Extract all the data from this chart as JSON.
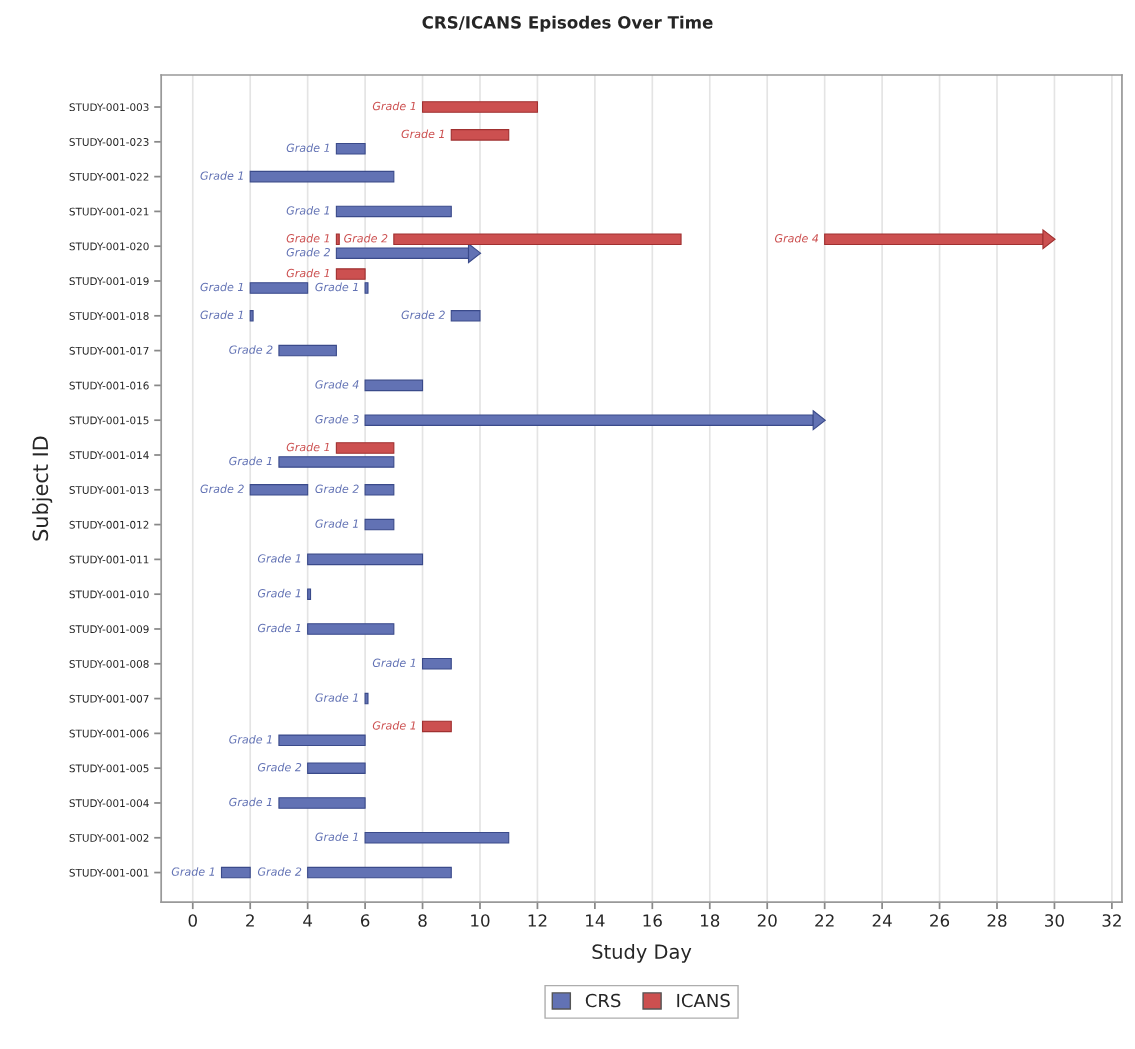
{
  "chart_data": {
    "type": "bar",
    "orientation": "horizontal",
    "title": "CRS/ICANS Episodes Over Time",
    "xlabel": "Study Day",
    "ylabel": "Subject ID",
    "categories": [
      "STUDY-001-003",
      "STUDY-001-023",
      "STUDY-001-022",
      "STUDY-001-021",
      "STUDY-001-020",
      "STUDY-001-019",
      "STUDY-001-018",
      "STUDY-001-017",
      "STUDY-001-016",
      "STUDY-001-015",
      "STUDY-001-014",
      "STUDY-001-013",
      "STUDY-001-012",
      "STUDY-001-011",
      "STUDY-001-010",
      "STUDY-001-009",
      "STUDY-001-008",
      "STUDY-001-007",
      "STUDY-001-006",
      "STUDY-001-005",
      "STUDY-001-004",
      "STUDY-001-002",
      "STUDY-001-001"
    ],
    "xlim": [
      -1.1,
      32.35
    ],
    "xticks": [
      0,
      2,
      4,
      6,
      8,
      10,
      12,
      14,
      16,
      18,
      20,
      22,
      24,
      26,
      28,
      30,
      32
    ],
    "grid": "x",
    "legend": "bottom",
    "series": [
      {
        "name": "CRS",
        "color": "#6272b4",
        "base": [
          null,
          5,
          2,
          5,
          null,
          2,
          2,
          3,
          6,
          null,
          3,
          2,
          6,
          4,
          4,
          4,
          8,
          6,
          3,
          4,
          3,
          6,
          1
        ],
        "values": [
          null,
          1,
          5,
          4,
          null,
          2,
          0.1,
          2,
          2,
          null,
          4,
          2,
          1,
          4,
          0.1,
          3,
          1,
          0.1,
          3,
          2,
          3,
          5,
          1
        ],
        "value_labels": [
          null,
          "Grade 1",
          "Grade 1",
          "Grade 1",
          null,
          "Grade 1",
          "Grade 1",
          "Grade 2",
          "Grade 4",
          null,
          "Grade 1",
          "Grade 2",
          "Grade 1",
          "Grade 1",
          "Grade 1",
          "Grade 1",
          "Grade 1",
          "Grade 1",
          "Grade 1",
          "Grade 2",
          "Grade 1",
          "Grade 1",
          "Grade 1"
        ]
      },
      {
        "color": "#6272b4",
        "base": [
          null,
          null,
          null,
          null,
          null,
          6,
          9,
          null,
          null,
          null,
          null,
          6,
          null,
          null,
          null,
          null,
          null,
          null,
          null,
          null,
          null,
          null,
          4
        ],
        "values": [
          null,
          null,
          null,
          null,
          null,
          0.1,
          1,
          null,
          null,
          null,
          null,
          1,
          null,
          null,
          null,
          null,
          null,
          null,
          null,
          null,
          null,
          null,
          5
        ],
        "value_labels": [
          null,
          null,
          null,
          null,
          null,
          "Grade 1",
          "Grade 2",
          null,
          null,
          null,
          null,
          "Grade 2",
          null,
          null,
          null,
          null,
          null,
          null,
          null,
          null,
          null,
          null,
          "Grade 2"
        ]
      },
      {
        "color": "#6272b4",
        "marker": "triangle",
        "base": [
          null,
          null,
          null,
          null,
          5,
          null,
          null,
          null,
          null,
          6,
          null,
          null,
          null,
          null,
          null,
          null,
          null,
          null,
          null,
          null,
          null,
          null,
          null
        ],
        "values": [
          null,
          null,
          null,
          null,
          4.6,
          null,
          null,
          null,
          null,
          15.6,
          null,
          null,
          null,
          null,
          null,
          null,
          null,
          null,
          null,
          null,
          null,
          null,
          null
        ],
        "value_labels": [
          null,
          null,
          null,
          null,
          "Grade 2",
          null,
          null,
          null,
          null,
          "Grade 3",
          null,
          null,
          null,
          null,
          null,
          null,
          null,
          null,
          null,
          null,
          null,
          null,
          null
        ]
      },
      {
        "name": "ICANS",
        "color": "#cc5050",
        "base": [
          8,
          9,
          null,
          null,
          5,
          5,
          null,
          null,
          null,
          null,
          5,
          null,
          null,
          null,
          null,
          null,
          null,
          null,
          8,
          null,
          null,
          null,
          null
        ],
        "values": [
          4,
          2,
          null,
          null,
          0.1,
          1,
          null,
          null,
          null,
          null,
          2,
          null,
          null,
          null,
          null,
          null,
          null,
          null,
          1,
          null,
          null,
          null,
          null
        ],
        "value_labels": [
          "Grade 1",
          "Grade 1",
          null,
          null,
          "Grade 1",
          "Grade 1",
          null,
          null,
          null,
          null,
          "Grade 1",
          null,
          null,
          null,
          null,
          null,
          null,
          null,
          "Grade 1",
          null,
          null,
          null,
          null
        ]
      },
      {
        "color": "#cc5050",
        "base": [
          null,
          null,
          null,
          null,
          7,
          null,
          null,
          null,
          null,
          null,
          null,
          null,
          null,
          null,
          null,
          null,
          null,
          null,
          null,
          null,
          null,
          null,
          null
        ],
        "values": [
          null,
          null,
          null,
          null,
          10,
          null,
          null,
          null,
          null,
          null,
          null,
          null,
          null,
          null,
          null,
          null,
          null,
          null,
          null,
          null,
          null,
          null,
          null
        ],
        "value_labels": [
          null,
          null,
          null,
          null,
          "Grade 2",
          null,
          null,
          null,
          null,
          null,
          null,
          null,
          null,
          null,
          null,
          null,
          null,
          null,
          null,
          null,
          null,
          null,
          null
        ]
      },
      {
        "color": "#cc5050",
        "marker": "triangle",
        "base": [
          null,
          null,
          null,
          null,
          22,
          null,
          null,
          null,
          null,
          null,
          null,
          null,
          null,
          null,
          null,
          null,
          null,
          null,
          null,
          null,
          null,
          null,
          null
        ],
        "values": [
          null,
          null,
          null,
          null,
          7.6,
          null,
          null,
          null,
          null,
          null,
          null,
          null,
          null,
          null,
          null,
          null,
          null,
          null,
          null,
          null,
          null,
          null,
          null
        ],
        "value_labels": [
          null,
          null,
          null,
          null,
          "Grade 4",
          null,
          null,
          null,
          null,
          null,
          null,
          null,
          null,
          null,
          null,
          null,
          null,
          null,
          null,
          null,
          null,
          null,
          null
        ]
      }
    ]
  }
}
